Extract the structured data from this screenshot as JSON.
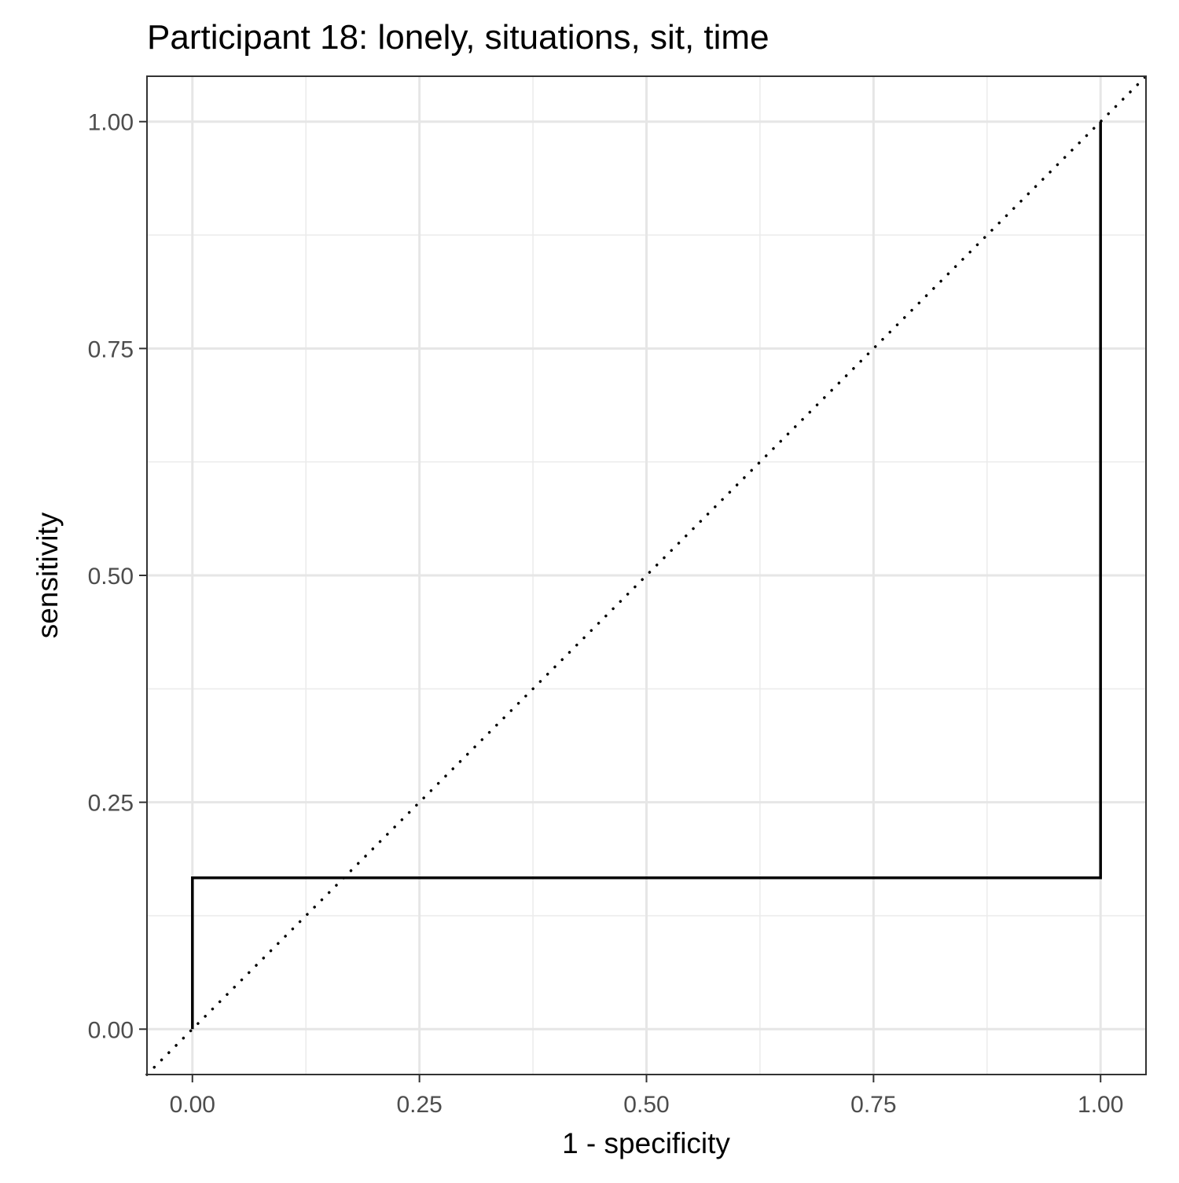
{
  "chart_data": {
    "type": "line",
    "title": "Participant 18: lonely, situations, sit, time",
    "xlabel": "1 - specificity",
    "ylabel": "sensitivity",
    "xlim": [
      -0.05,
      1.05
    ],
    "ylim": [
      -0.05,
      1.05
    ],
    "x_ticks": [
      "0.00",
      "0.25",
      "0.50",
      "0.75",
      "1.00"
    ],
    "y_ticks": [
      "0.00",
      "0.25",
      "0.50",
      "0.75",
      "1.00"
    ],
    "grid": true,
    "legend": "none",
    "series": [
      {
        "style": "solid",
        "color": "#000000",
        "step": true,
        "x": [
          0.0,
          0.0,
          1.0,
          1.0
        ],
        "y": [
          0.0,
          0.1667,
          0.1667,
          1.0
        ]
      }
    ],
    "reference_line": {
      "style": "dotted",
      "color": "#000000",
      "x": [
        -0.05,
        1.05
      ],
      "y": [
        -0.05,
        1.05
      ]
    }
  }
}
